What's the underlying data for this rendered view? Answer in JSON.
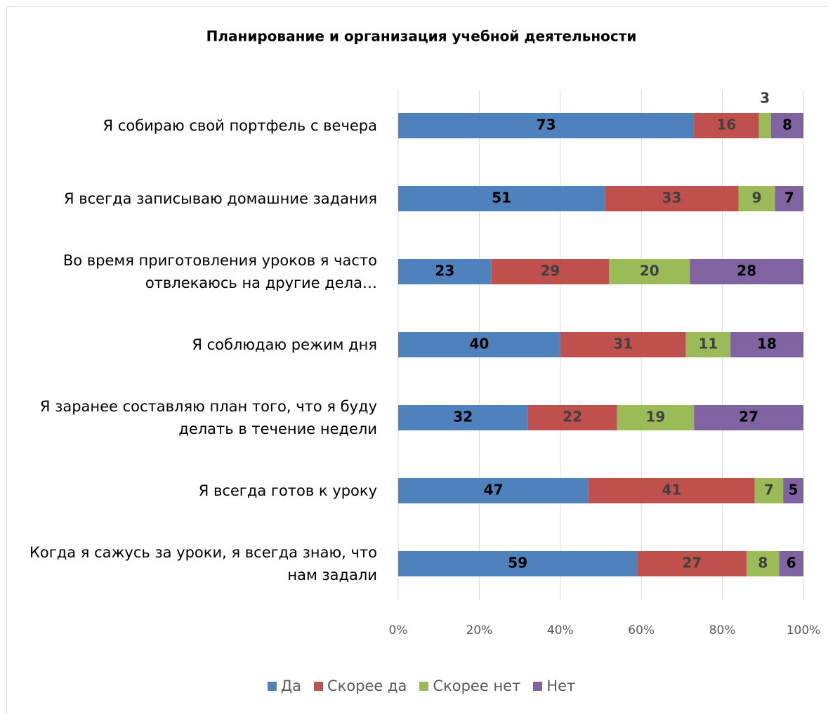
{
  "chart_data": {
    "type": "stacked_bar_horizontal",
    "title": "Планирование и организация учебной деятельности",
    "categories": [
      "Я собираю свой портфель с вечера",
      "Я всегда записываю домашние задания",
      "Во время приготовления уроков я часто отвлекаюсь на другие дела…",
      "Я соблюдаю режим дня",
      "Я заранее составляю план того, что я буду делать в течение недели",
      "Я всегда готов к уроку",
      "Когда я сажусь за уроки, я всегда знаю, что нам задали"
    ],
    "series": [
      {
        "name": "Да",
        "color": "#4f81bd",
        "label_color": "#000000",
        "values": [
          73,
          51,
          23,
          40,
          32,
          47,
          59
        ]
      },
      {
        "name": "Скорее да",
        "color": "#c0504d",
        "label_color": "#404040",
        "values": [
          16,
          33,
          29,
          31,
          22,
          41,
          27
        ]
      },
      {
        "name": "Скорее нет",
        "color": "#9bbb59",
        "label_color": "#404040",
        "values": [
          3,
          9,
          20,
          11,
          19,
          7,
          8
        ]
      },
      {
        "name": "Нет",
        "color": "#8064a2",
        "label_color": "#000000",
        "values": [
          8,
          7,
          28,
          18,
          27,
          5,
          6
        ]
      }
    ],
    "xlim": [
      0,
      100
    ],
    "xticks": [
      {
        "value": 0,
        "label": "0%"
      },
      {
        "value": 20,
        "label": "20%"
      },
      {
        "value": 40,
        "label": "40%"
      },
      {
        "value": 60,
        "label": "60%"
      },
      {
        "value": 80,
        "label": "80%"
      },
      {
        "value": 100,
        "label": "100%"
      }
    ],
    "grid": true,
    "legend": "bottom"
  }
}
